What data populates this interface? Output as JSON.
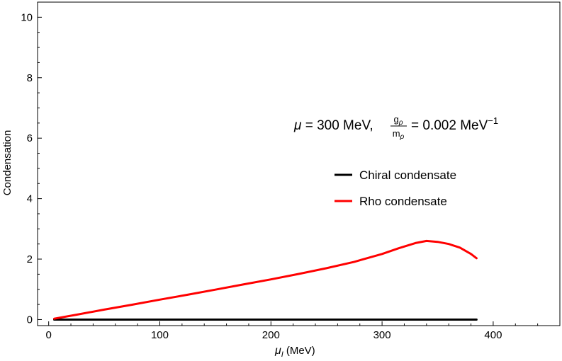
{
  "chart_data": {
    "type": "line",
    "xlabel_symbol": "μ",
    "xlabel_sub": "I",
    "xlabel_unit": "(MeV)",
    "ylabel": "Condensation",
    "xlim": [
      -10,
      460
    ],
    "ylim": [
      -0.2,
      10.5
    ],
    "xticks": [
      0,
      100,
      200,
      300,
      400
    ],
    "yticks": [
      0,
      2,
      4,
      6,
      8,
      10
    ],
    "grid": false,
    "legend_position": "center-right",
    "annotation": {
      "mu_symbol": "μ",
      "prefix": "= 300 MeV,",
      "frac_num": "g",
      "frac_num_sub": "ρ",
      "frac_den": "m",
      "frac_den_sub": "ρ",
      "value": "= 0.002 MeV",
      "exponent": "−1"
    },
    "series": [
      {
        "name": "Chiral condensate",
        "color": "#000000",
        "x": [
          5,
          50,
          100,
          150,
          200,
          250,
          300,
          350,
          385
        ],
        "y": [
          0,
          0,
          0,
          0,
          0,
          0,
          0,
          0,
          0
        ]
      },
      {
        "name": "Rho condensate",
        "color": "#ff0000",
        "x": [
          5,
          25,
          50,
          75,
          100,
          125,
          150,
          175,
          200,
          225,
          250,
          275,
          300,
          315,
          330,
          340,
          350,
          360,
          370,
          380,
          385
        ],
        "y": [
          0.03,
          0.16,
          0.33,
          0.49,
          0.66,
          0.82,
          0.99,
          1.16,
          1.33,
          1.51,
          1.7,
          1.91,
          2.17,
          2.36,
          2.53,
          2.6,
          2.57,
          2.5,
          2.38,
          2.17,
          2.03
        ]
      }
    ]
  }
}
